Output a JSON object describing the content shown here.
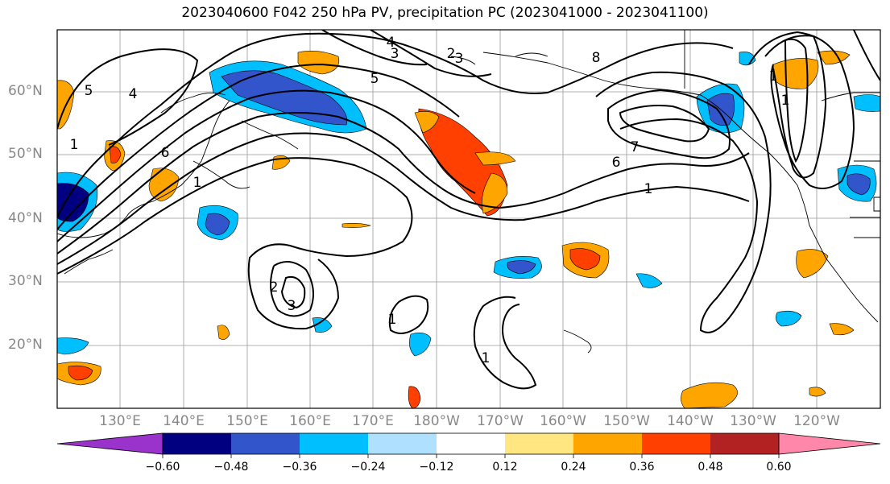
{
  "title": "2023040600 F042 250 hPa PV, precipitation PC (2023041000 - 2023041100)",
  "latitude_labels": [
    "60°N",
    "50°N",
    "40°N",
    "30°N",
    "20°N"
  ],
  "longitude_labels": [
    "130°E",
    "140°E",
    "150°E",
    "160°E",
    "170°E",
    "180°W",
    "170°W",
    "160°W",
    "150°W",
    "140°W",
    "130°W",
    "120°W"
  ],
  "pv_contour_labels": [
    "5",
    "4",
    "1",
    "2",
    "6",
    "3",
    "5",
    "4",
    "3",
    "1",
    "1",
    "1",
    "7",
    "6",
    "8",
    "1",
    "2",
    "3",
    "1",
    "1"
  ],
  "colorbar": {
    "tick_labels": [
      "−0.60",
      "−0.48",
      "−0.36",
      "−0.24",
      "−0.12",
      "0.12",
      "0.24",
      "0.36",
      "0.48",
      "0.60"
    ],
    "colors": [
      "#9933cc",
      "#000080",
      "#3355cc",
      "#00bfff",
      "#b0e0ff",
      "#ffffff",
      "#ffe680",
      "#ffa500",
      "#ff4000",
      "#b22222",
      "#ff88aa"
    ]
  }
}
